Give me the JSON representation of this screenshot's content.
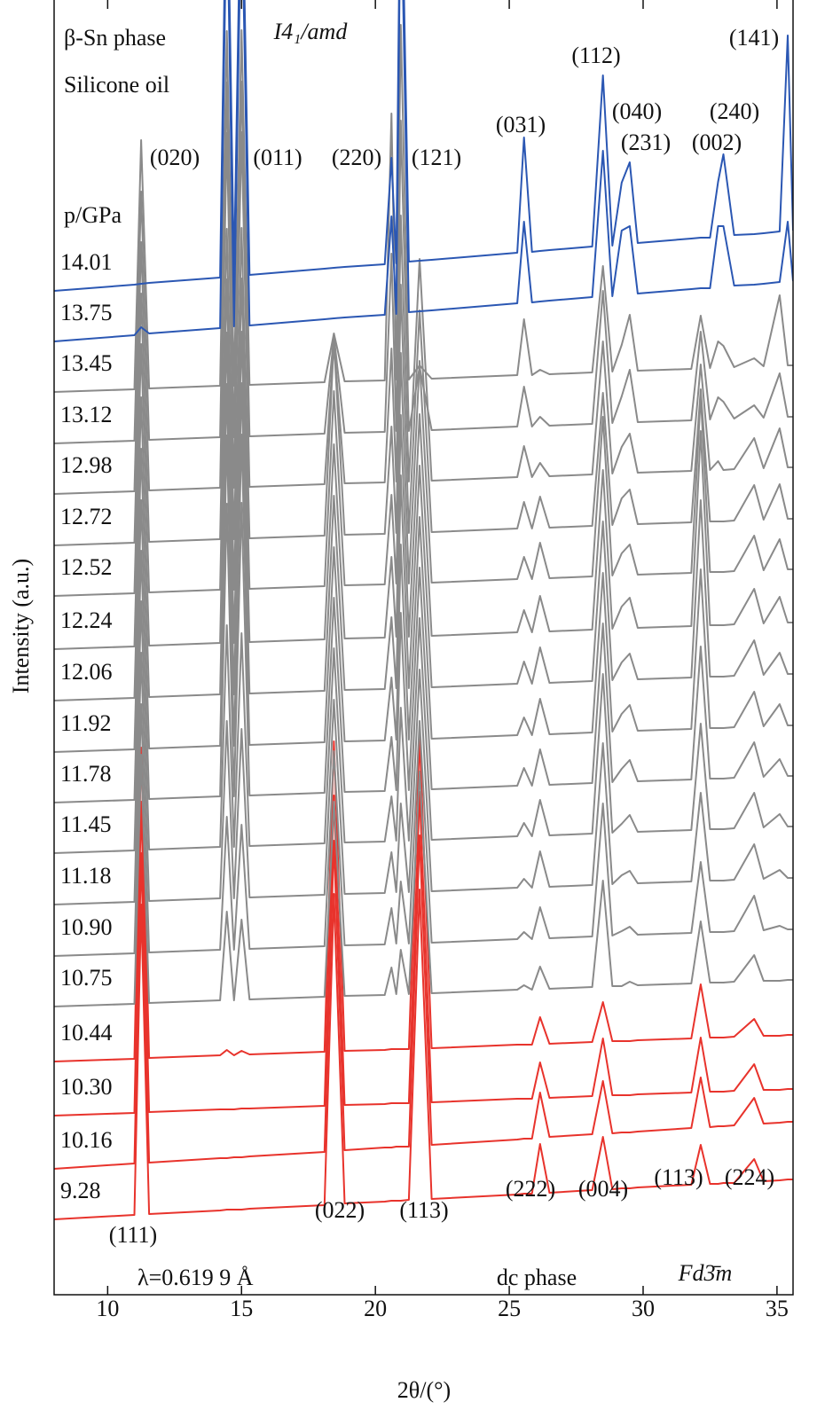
{
  "chart_data": {
    "type": "line",
    "x_label": "2θ/(°)",
    "y_label": "Intensity (a.u.)",
    "pressure_label": "p/GPa",
    "annotations": [
      "β-Sn phase",
      "Silicone oil",
      "I4₁/amd",
      "(141)",
      "(112)",
      "(040)",
      "(240)",
      "(031)",
      "(231)",
      "(002)",
      "(020)",
      "(011)",
      "(220)",
      "(121)",
      "(222)",
      "(004)",
      "(113)",
      "(224)",
      "(022)",
      "(113)",
      "(111)",
      "λ=0.619 9 Å",
      "dc phase",
      "Fd3̄m"
    ],
    "xlim": [
      8,
      35.6
    ],
    "xticks": [
      10,
      15,
      20,
      25,
      30,
      35
    ],
    "ylim": [
      -48,
      1412
    ],
    "x": [
      8,
      11.0,
      11.25,
      11.55,
      14.2,
      14.45,
      14.72,
      15.0,
      15.3,
      18.1,
      18.45,
      18.85,
      20.35,
      20.6,
      20.78,
      20.95,
      21.25,
      21.65,
      22.1,
      25.3,
      25.55,
      25.85,
      26.15,
      26.5,
      28.1,
      28.5,
      28.85,
      29.2,
      29.5,
      29.8,
      31.8,
      32.15,
      32.5,
      32.8,
      33.0,
      33.4,
      34.15,
      34.5,
      35.1,
      35.4,
      35.6
    ],
    "series": [
      {
        "name": "14.01",
        "color": "#2b57b3",
        "values": [
          1084,
          1091,
          1092,
          1093,
          1099,
          1600,
          1101,
          1601,
          1102,
          1109,
          1110,
          1111,
          1114,
          1234,
          1115,
          1616,
          1117,
          1118,
          1119,
          1127,
          1257,
          1128,
          1129,
          1130,
          1134,
          1327,
          1135,
          1206,
          1229,
          1138,
          1143,
          1144,
          1144,
          1207,
          1238,
          1147,
          1148,
          1149,
          1151,
          1372,
          1152
        ]
      },
      {
        "name": "13.75",
        "color": "#2b57b3",
        "values": [
          1027,
          1034,
          1043,
          1036,
          1042,
          1543,
          1044,
          1544,
          1045,
          1052,
          1053,
          1054,
          1057,
          1168,
          1058,
          1559,
          1060,
          1061,
          1062,
          1070,
          1162,
          1071,
          1072,
          1073,
          1077,
          1242,
          1078,
          1152,
          1157,
          1081,
          1086,
          1087,
          1087,
          1157,
          1157,
          1090,
          1091,
          1092,
          1094,
          1162,
          1095
        ]
      },
      {
        "name": "13.45",
        "color": "#8a8a8a",
        "values": [
          970,
          973,
          1254,
          974,
          977,
          1377,
          977,
          1378,
          978,
          981,
          1036,
          982,
          983,
          1284,
          984,
          1384,
          984,
          1000,
          985,
          989,
          1052,
          989,
          995,
          990,
          992,
          1112,
          993,
          1023,
          1057,
          994,
          996,
          1056,
          997,
          1027,
          1022,
          998,
          1008,
          999,
          1079,
          1000,
          1000
        ]
      },
      {
        "name": "13.12",
        "color": "#8a8a8a",
        "values": [
          912,
          915,
          1196,
          916,
          919,
          1319,
          919,
          1320,
          920,
          923,
          1033,
          924,
          925,
          1126,
          926,
          1276,
          926,
          998,
          927,
          931,
          976,
          931,
          942,
          932,
          934,
          1084,
          935,
          965,
          995,
          936,
          938,
          1038,
          939,
          964,
          959,
          940,
          955,
          941,
          991,
          942,
          942
        ]
      },
      {
        "name": "12.98",
        "color": "#8a8a8a",
        "values": [
          855,
          858,
          1139,
          859,
          862,
          1262,
          862,
          1263,
          863,
          866,
          1026,
          867,
          868,
          1019,
          869,
          1169,
          869,
          1120,
          870,
          874,
          909,
          874,
          890,
          875,
          877,
          1027,
          878,
          908,
          923,
          879,
          881,
          1001,
          882,
          892,
          882,
          883,
          918,
          884,
          929,
          885,
          885
        ]
      },
      {
        "name": "12.72",
        "color": "#8a8a8a",
        "values": [
          797,
          800,
          1081,
          801,
          804,
          1154,
          804,
          1155,
          805,
          808,
          1028,
          809,
          810,
          931,
          811,
          1091,
          811,
          1062,
          812,
          816,
          846,
          816,
          852,
          817,
          819,
          969,
          820,
          850,
          860,
          821,
          823,
          973,
          824,
          824,
          824,
          825,
          865,
          826,
          866,
          827,
          827
        ]
      },
      {
        "name": "12.52",
        "color": "#8a8a8a",
        "values": [
          740,
          743,
          1024,
          744,
          747,
          1097,
          747,
          1098,
          748,
          751,
          971,
          752,
          753,
          854,
          754,
          1014,
          754,
          1005,
          755,
          759,
          784,
          759,
          800,
          760,
          762,
          942,
          763,
          788,
          798,
          764,
          766,
          966,
          767,
          767,
          767,
          768,
          808,
          769,
          804,
          770,
          770
        ]
      },
      {
        "name": "12.24",
        "color": "#8a8a8a",
        "values": [
          680,
          683,
          964,
          684,
          687,
          1037,
          687,
          1038,
          688,
          691,
          911,
          692,
          693,
          784,
          694,
          944,
          694,
          945,
          695,
          699,
          724,
          699,
          740,
          700,
          702,
          882,
          703,
          728,
          738,
          704,
          706,
          926,
          707,
          707,
          707,
          708,
          748,
          709,
          739,
          710,
          710
        ]
      },
      {
        "name": "12.06",
        "color": "#8a8a8a",
        "values": [
          622,
          625,
          906,
          626,
          629,
          979,
          629,
          980,
          630,
          633,
          853,
          634,
          635,
          716,
          636,
          876,
          636,
          887,
          637,
          641,
          666,
          641,
          682,
          642,
          644,
          824,
          645,
          665,
          675,
          646,
          648,
          848,
          649,
          649,
          649,
          650,
          690,
          651,
          676,
          652,
          652
        ]
      },
      {
        "name": "11.92",
        "color": "#8a8a8a",
        "values": [
          564,
          567,
          848,
          568,
          571,
          921,
          571,
          922,
          572,
          575,
          795,
          576,
          577,
          648,
          578,
          798,
          578,
          829,
          579,
          583,
          603,
          583,
          624,
          584,
          586,
          766,
          587,
          607,
          617,
          588,
          590,
          770,
          591,
          591,
          591,
          592,
          632,
          593,
          618,
          594,
          594
        ]
      },
      {
        "name": "11.78",
        "color": "#8a8a8a",
        "values": [
          507,
          510,
          791,
          511,
          514,
          844,
          514,
          845,
          515,
          518,
          738,
          519,
          520,
          581,
          521,
          721,
          521,
          772,
          522,
          526,
          546,
          526,
          567,
          527,
          529,
          709,
          530,
          545,
          555,
          531,
          533,
          683,
          534,
          534,
          534,
          535,
          575,
          536,
          556,
          537,
          537
        ]
      },
      {
        "name": "11.45",
        "color": "#8a8a8a",
        "values": [
          450,
          453,
          734,
          454,
          457,
          707,
          457,
          698,
          458,
          461,
          681,
          462,
          463,
          514,
          464,
          614,
          464,
          715,
          465,
          469,
          484,
          469,
          510,
          470,
          472,
          652,
          473,
          483,
          493,
          474,
          476,
          596,
          477,
          477,
          477,
          478,
          518,
          479,
          494,
          480,
          480
        ]
      },
      {
        "name": "11.18",
        "color": "#8a8a8a",
        "values": [
          392,
          395,
          676,
          396,
          399,
          599,
          399,
          590,
          400,
          403,
          623,
          404,
          405,
          451,
          406,
          506,
          406,
          657,
          407,
          411,
          421,
          411,
          452,
          412,
          414,
          574,
          415,
          425,
          430,
          416,
          418,
          518,
          419,
          419,
          419,
          420,
          460,
          421,
          431,
          422,
          422
        ]
      },
      {
        "name": "10.90",
        "color": "#8a8a8a",
        "values": [
          334,
          337,
          618,
          338,
          341,
          491,
          341,
          482,
          342,
          345,
          565,
          346,
          347,
          388,
          348,
          418,
          348,
          599,
          349,
          353,
          361,
          353,
          389,
          354,
          356,
          506,
          357,
          362,
          367,
          358,
          360,
          440,
          361,
          361,
          361,
          362,
          402,
          363,
          368,
          364,
          364
        ]
      },
      {
        "name": "10.75",
        "color": "#8a8a8a",
        "values": [
          277,
          280,
          561,
          281,
          284,
          384,
          284,
          375,
          285,
          288,
          508,
          289,
          290,
          321,
          291,
          341,
          291,
          542,
          292,
          296,
          301,
          296,
          322,
          297,
          299,
          419,
          300,
          300,
          305,
          301,
          303,
          373,
          304,
          304,
          304,
          305,
          335,
          306,
          306,
          307,
          307
        ]
      },
      {
        "name": "10.44",
        "color": "#e8332c",
        "values": [
          215,
          218,
          569,
          219,
          222,
          228,
          222,
          227,
          223,
          226,
          576,
          227,
          228,
          229,
          229,
          229,
          229,
          580,
          230,
          234,
          234,
          234,
          265,
          235,
          237,
          282,
          238,
          238,
          238,
          239,
          241,
          302,
          242,
          242,
          242,
          243,
          263,
          244,
          244,
          245,
          245
        ]
      },
      {
        "name": "10.30",
        "color": "#e8332c",
        "values": [
          154,
          157,
          508,
          158,
          161,
          161,
          161,
          162,
          162,
          165,
          515,
          166,
          167,
          168,
          168,
          168,
          168,
          519,
          169,
          173,
          173,
          173,
          214,
          174,
          176,
          241,
          177,
          177,
          177,
          178,
          180,
          242,
          181,
          181,
          181,
          182,
          212,
          183,
          183,
          184,
          184
        ]
      },
      {
        "name": "10.16",
        "color": "#e8332c",
        "values": [
          94,
          100,
          450,
          101,
          106,
          106,
          107,
          107,
          108,
          113,
          464,
          115,
          118,
          118,
          119,
          119,
          119,
          470,
          121,
          127,
          128,
          128,
          180,
          130,
          133,
          193,
          134,
          135,
          135,
          136,
          140,
          197,
          141,
          142,
          142,
          143,
          174,
          145,
          146,
          147,
          147
        ]
      },
      {
        "name": "9.28",
        "color": "#e8332c",
        "values": [
          37,
          42,
          392,
          43,
          47,
          48,
          48,
          48,
          49,
          53,
          404,
          55,
          57,
          58,
          58,
          58,
          59,
          409,
          60,
          65,
          66,
          66,
          122,
          67,
          70,
          130,
          71,
          72,
          72,
          73,
          76,
          121,
          77,
          77,
          78,
          78,
          105,
          80,
          81,
          82,
          82
        ]
      }
    ]
  }
}
